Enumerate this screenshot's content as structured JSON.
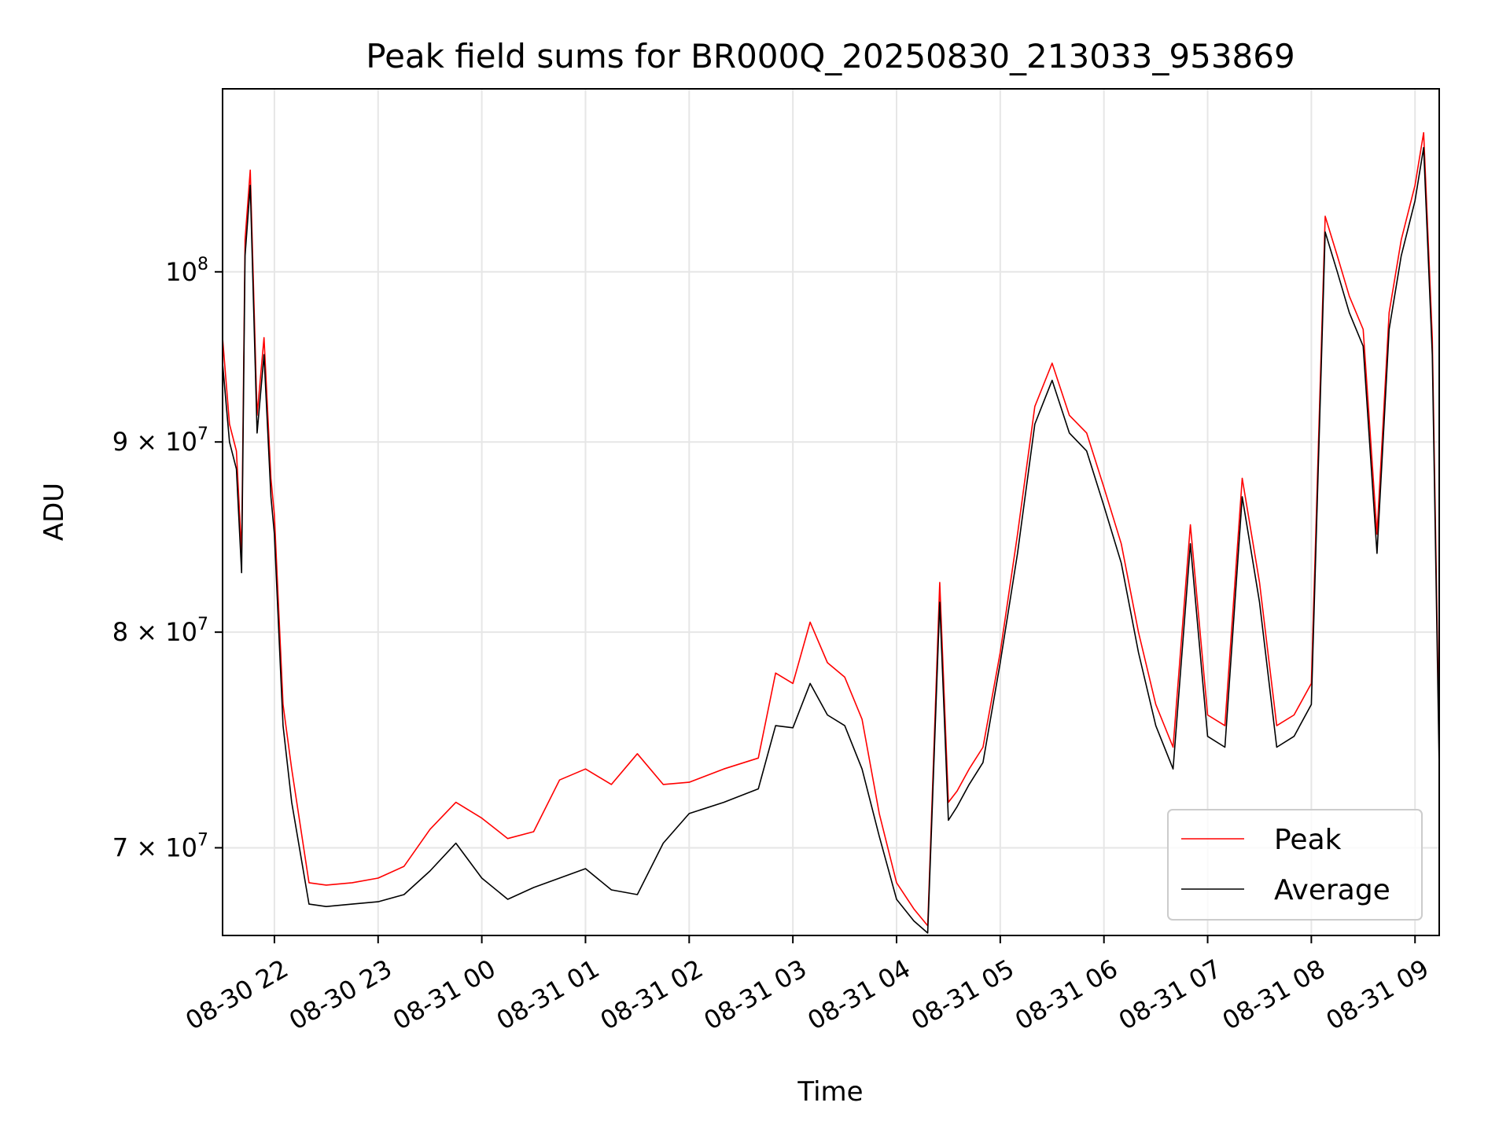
{
  "chart_data": {
    "type": "line",
    "title": "Peak field sums for BR000Q_20250830_213033_953869",
    "xlabel": "Time",
    "ylabel": "ADU",
    "y_scale": "log",
    "grid": true,
    "legend_position": "lower-right",
    "xlim": [
      "2025-08-30 21:30",
      "2025-08-31 09:14"
    ],
    "ylim": [
      66300000,
      112000000
    ],
    "x_ticks": [
      "2025-08-30 22:00",
      "2025-08-30 23:00",
      "2025-08-31 00:00",
      "2025-08-31 01:00",
      "2025-08-31 02:00",
      "2025-08-31 03:00",
      "2025-08-31 04:00",
      "2025-08-31 05:00",
      "2025-08-31 06:00",
      "2025-08-31 07:00",
      "2025-08-31 08:00",
      "2025-08-31 09:00"
    ],
    "x_tick_labels": [
      "08-30 22",
      "08-30 23",
      "08-31 00",
      "08-31 01",
      "08-31 02",
      "08-31 03",
      "08-31 04",
      "08-31 05",
      "08-31 06",
      "08-31 07",
      "08-31 08",
      "08-31 09"
    ],
    "y_ticks": [
      {
        "value": 70000000,
        "mantissa": "7",
        "exponent": "7"
      },
      {
        "value": 80000000,
        "mantissa": "8",
        "exponent": "7"
      },
      {
        "value": 90000000,
        "mantissa": "9",
        "exponent": "7"
      },
      {
        "value": 100000000,
        "mantissa": "",
        "exponent": "8"
      }
    ],
    "series": [
      {
        "name": "Peak",
        "color": "#ff0000",
        "x": [
          "2025-08-30 21:30",
          "2025-08-30 21:34",
          "2025-08-30 21:38",
          "2025-08-30 21:41",
          "2025-08-30 21:43",
          "2025-08-30 21:46",
          "2025-08-30 21:50",
          "2025-08-30 21:54",
          "2025-08-30 21:58",
          "2025-08-30 22:00",
          "2025-08-30 22:05",
          "2025-08-30 22:10",
          "2025-08-30 22:20",
          "2025-08-30 22:30",
          "2025-08-30 22:45",
          "2025-08-30 23:00",
          "2025-08-30 23:15",
          "2025-08-30 23:30",
          "2025-08-30 23:45",
          "2025-08-31 00:00",
          "2025-08-31 00:15",
          "2025-08-31 00:30",
          "2025-08-31 00:45",
          "2025-08-31 01:00",
          "2025-08-31 01:15",
          "2025-08-31 01:30",
          "2025-08-31 01:45",
          "2025-08-31 02:00",
          "2025-08-31 02:20",
          "2025-08-31 02:40",
          "2025-08-31 02:50",
          "2025-08-31 03:00",
          "2025-08-31 03:10",
          "2025-08-31 03:20",
          "2025-08-31 03:30",
          "2025-08-31 03:40",
          "2025-08-31 03:50",
          "2025-08-31 04:00",
          "2025-08-31 04:10",
          "2025-08-31 04:18",
          "2025-08-31 04:25",
          "2025-08-31 04:30",
          "2025-08-31 04:35",
          "2025-08-31 04:42",
          "2025-08-31 04:50",
          "2025-08-31 05:00",
          "2025-08-31 05:10",
          "2025-08-31 05:20",
          "2025-08-31 05:30",
          "2025-08-31 05:40",
          "2025-08-31 05:50",
          "2025-08-31 06:00",
          "2025-08-31 06:10",
          "2025-08-31 06:20",
          "2025-08-31 06:30",
          "2025-08-31 06:40",
          "2025-08-31 06:50",
          "2025-08-31 07:00",
          "2025-08-31 07:10",
          "2025-08-31 07:20",
          "2025-08-31 07:30",
          "2025-08-31 07:40",
          "2025-08-31 07:50",
          "2025-08-31 08:00",
          "2025-08-31 08:08",
          "2025-08-31 08:15",
          "2025-08-31 08:22",
          "2025-08-31 08:30",
          "2025-08-31 08:38",
          "2025-08-31 08:45",
          "2025-08-31 08:52",
          "2025-08-31 09:00",
          "2025-08-31 09:05",
          "2025-08-31 09:10",
          "2025-08-31 09:14"
        ],
        "values": [
          96000000,
          91000000,
          89500000,
          84000000,
          102000000,
          106500000,
          91500000,
          96000000,
          88000000,
          86000000,
          76500000,
          73500000,
          68500000,
          68400000,
          68500000,
          68700000,
          69200000,
          70800000,
          72000000,
          71300000,
          70400000,
          70700000,
          73000000,
          73500000,
          72800000,
          74200000,
          72800000,
          72900000,
          73500000,
          74000000,
          78000000,
          77500000,
          80500000,
          78500000,
          77800000,
          75800000,
          71500000,
          68500000,
          67400000,
          66700000,
          82500000,
          72000000,
          72500000,
          73500000,
          74500000,
          79000000,
          85000000,
          92000000,
          94500000,
          91500000,
          90500000,
          87500000,
          84500000,
          80000000,
          76500000,
          74500000,
          85500000,
          76000000,
          75500000,
          88000000,
          82500000,
          75500000,
          76000000,
          77500000,
          103500000,
          101000000,
          98500000,
          96500000,
          85000000,
          97500000,
          102000000,
          105500000,
          109000000,
          96000000,
          74500000
        ]
      },
      {
        "name": "Average",
        "color": "#000000",
        "x": [
          "2025-08-30 21:30",
          "2025-08-30 21:34",
          "2025-08-30 21:38",
          "2025-08-30 21:41",
          "2025-08-30 21:43",
          "2025-08-30 21:46",
          "2025-08-30 21:50",
          "2025-08-30 21:54",
          "2025-08-30 21:58",
          "2025-08-30 22:00",
          "2025-08-30 22:05",
          "2025-08-30 22:10",
          "2025-08-30 22:20",
          "2025-08-30 22:30",
          "2025-08-30 22:45",
          "2025-08-30 23:00",
          "2025-08-30 23:15",
          "2025-08-30 23:30",
          "2025-08-30 23:45",
          "2025-08-31 00:00",
          "2025-08-31 00:15",
          "2025-08-31 00:30",
          "2025-08-31 00:45",
          "2025-08-31 01:00",
          "2025-08-31 01:15",
          "2025-08-31 01:30",
          "2025-08-31 01:45",
          "2025-08-31 02:00",
          "2025-08-31 02:20",
          "2025-08-31 02:40",
          "2025-08-31 02:50",
          "2025-08-31 03:00",
          "2025-08-31 03:10",
          "2025-08-31 03:20",
          "2025-08-31 03:30",
          "2025-08-31 03:40",
          "2025-08-31 03:50",
          "2025-08-31 04:00",
          "2025-08-31 04:10",
          "2025-08-31 04:18",
          "2025-08-31 04:25",
          "2025-08-31 04:30",
          "2025-08-31 04:35",
          "2025-08-31 04:42",
          "2025-08-31 04:50",
          "2025-08-31 05:00",
          "2025-08-31 05:10",
          "2025-08-31 05:20",
          "2025-08-31 05:30",
          "2025-08-31 05:40",
          "2025-08-31 05:50",
          "2025-08-31 06:00",
          "2025-08-31 06:10",
          "2025-08-31 06:20",
          "2025-08-31 06:30",
          "2025-08-31 06:40",
          "2025-08-31 06:50",
          "2025-08-31 07:00",
          "2025-08-31 07:10",
          "2025-08-31 07:20",
          "2025-08-31 07:30",
          "2025-08-31 07:40",
          "2025-08-31 07:50",
          "2025-08-31 08:00",
          "2025-08-31 08:08",
          "2025-08-31 08:15",
          "2025-08-31 08:22",
          "2025-08-31 08:30",
          "2025-08-31 08:38",
          "2025-08-31 08:45",
          "2025-08-31 08:52",
          "2025-08-31 09:00",
          "2025-08-31 09:05",
          "2025-08-31 09:10",
          "2025-08-31 09:14"
        ],
        "values": [
          94500000,
          90000000,
          88500000,
          83000000,
          101000000,
          105500000,
          90500000,
          95000000,
          87000000,
          85000000,
          75500000,
          72000000,
          67600000,
          67500000,
          67600000,
          67700000,
          68000000,
          69000000,
          70200000,
          68700000,
          67800000,
          68300000,
          68700000,
          69100000,
          68200000,
          68000000,
          70200000,
          71500000,
          72000000,
          72600000,
          75500000,
          75400000,
          77500000,
          76000000,
          75500000,
          73500000,
          70500000,
          67800000,
          66900000,
          66400000,
          81500000,
          71200000,
          71800000,
          72800000,
          73800000,
          78500000,
          84000000,
          91000000,
          93500000,
          90500000,
          89500000,
          86500000,
          83500000,
          79000000,
          75500000,
          73500000,
          84500000,
          75000000,
          74500000,
          87000000,
          81500000,
          74500000,
          75000000,
          76500000,
          102500000,
          100000000,
          97500000,
          95500000,
          84000000,
          96500000,
          101000000,
          104500000,
          108000000,
          95000000,
          73500000
        ]
      }
    ]
  }
}
